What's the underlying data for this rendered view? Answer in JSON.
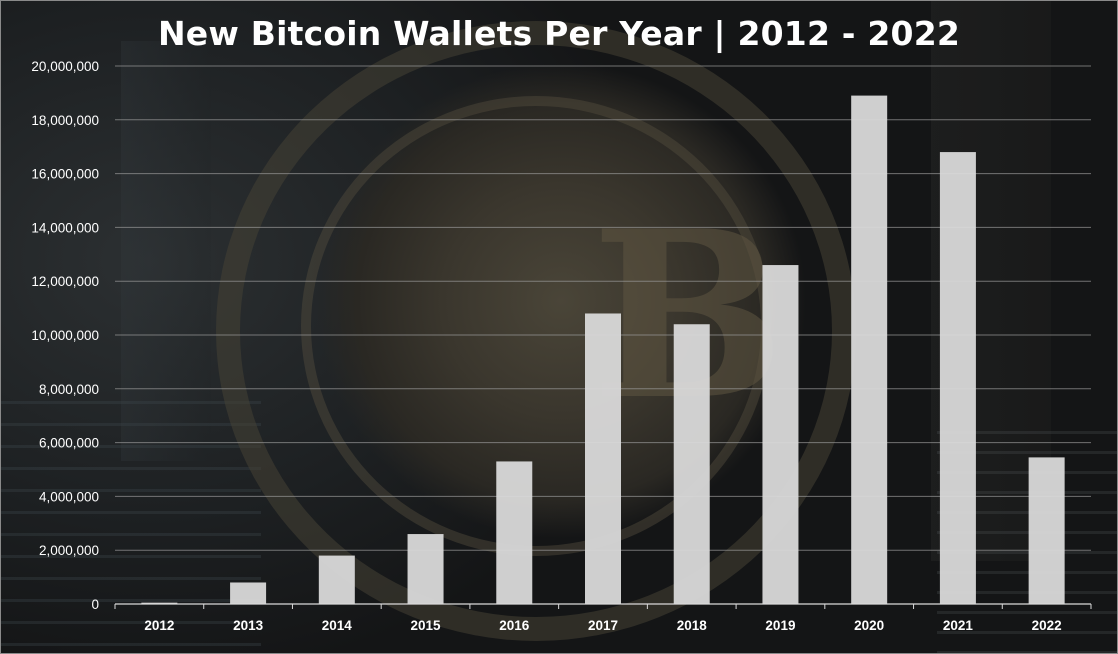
{
  "chart_data": {
    "type": "bar",
    "title": "New Bitcoin Wallets Per Year | 2012 - 2022",
    "xlabel": "",
    "ylabel": "",
    "categories": [
      "2012",
      "2013",
      "2014",
      "2015",
      "2016",
      "2017",
      "2018",
      "2019",
      "2020",
      "2021",
      "2022"
    ],
    "values": [
      50000,
      800000,
      1800000,
      2600000,
      5300000,
      10800000,
      10400000,
      12600000,
      18900000,
      16800000,
      5450000
    ],
    "ylim": [
      0,
      20000000
    ],
    "yticks": [
      "0",
      "2,000,000",
      "4,000,000",
      "6,000,000",
      "8,000,000",
      "10,000,000",
      "12,000,000",
      "14,000,000",
      "16,000,000",
      "18,000,000",
      "20,000,000"
    ],
    "ytick_values": [
      0,
      2000000,
      4000000,
      6000000,
      8000000,
      10000000,
      12000000,
      14000000,
      16000000,
      18000000,
      20000000
    ],
    "grid": true,
    "legend": "none",
    "bar_color": "#d9d9d9",
    "gridline_color": "#9a9a9a"
  }
}
